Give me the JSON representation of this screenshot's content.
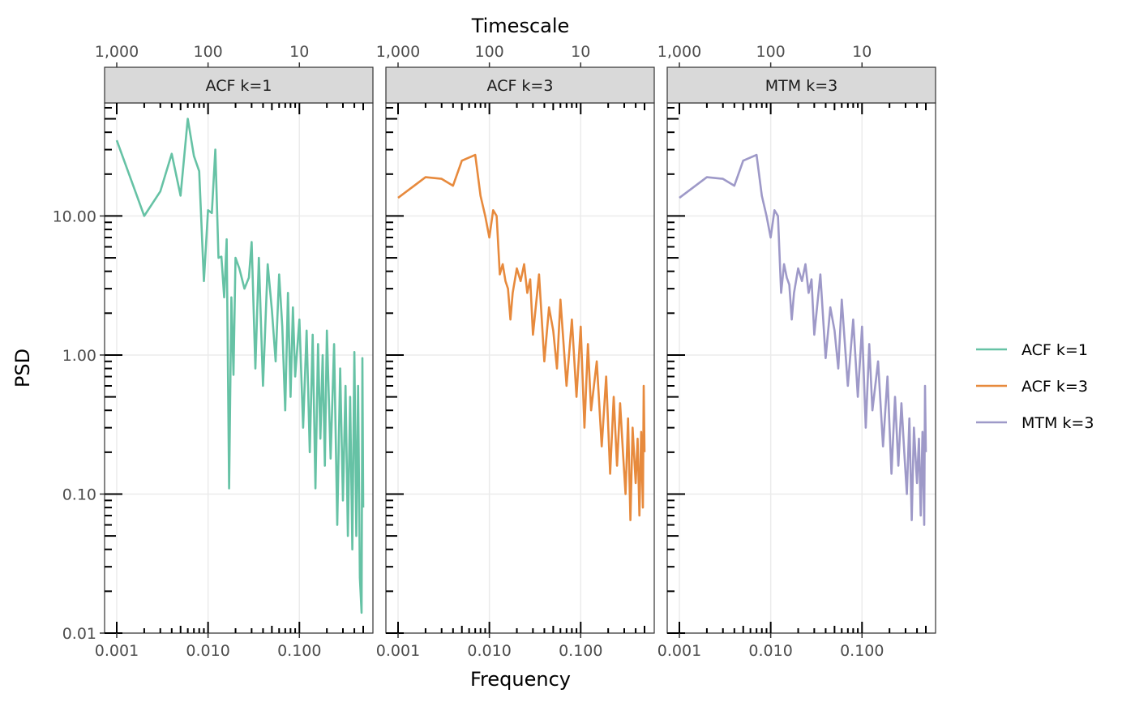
{
  "chart_data": {
    "type": "line",
    "xlabel": "Frequency",
    "ylabel": "PSD",
    "top_axis_label": "Timescale",
    "x_scale": "log10",
    "y_scale": "log10",
    "xlim": [
      0.001,
      0.5
    ],
    "ylim": [
      0.01,
      65
    ],
    "x_ticks": [
      0.001,
      0.01,
      0.1
    ],
    "x_tick_labels": [
      "0.001",
      "0.010",
      "0.100"
    ],
    "y_ticks": [
      0.01,
      0.1,
      1,
      10
    ],
    "y_tick_labels": [
      "0.01",
      "0.10",
      "1.00",
      "10.00"
    ],
    "top_ticks": [
      1000,
      100,
      10
    ],
    "top_tick_labels": [
      "1,000",
      "100",
      "10"
    ],
    "grid": true,
    "legend_position": "right",
    "facets": [
      "ACF k=1",
      "ACF k=3",
      "MTM k=3"
    ],
    "series": [
      {
        "name": "ACF k=1",
        "facet": "ACF k=1",
        "color": "#66C2A5",
        "points": [
          [
            0.001,
            35.0
          ],
          [
            0.002,
            10.0
          ],
          [
            0.003,
            15.0
          ],
          [
            0.004,
            28.0
          ],
          [
            0.005,
            14.0
          ],
          [
            0.006,
            50.0
          ],
          [
            0.007,
            27.0
          ],
          [
            0.008,
            21.0
          ],
          [
            0.009,
            3.4
          ],
          [
            0.01,
            11.0
          ],
          [
            0.011,
            10.5
          ],
          [
            0.012,
            30.0
          ],
          [
            0.013,
            5.0
          ],
          [
            0.014,
            5.1
          ],
          [
            0.015,
            2.6
          ],
          [
            0.016,
            6.8
          ],
          [
            0.017,
            0.11
          ],
          [
            0.018,
            2.6
          ],
          [
            0.019,
            0.72
          ],
          [
            0.02,
            5.0
          ],
          [
            0.022,
            4.2
          ],
          [
            0.025,
            3.0
          ],
          [
            0.028,
            3.6
          ],
          [
            0.03,
            6.5
          ],
          [
            0.033,
            0.8
          ],
          [
            0.036,
            5.0
          ],
          [
            0.04,
            0.6
          ],
          [
            0.045,
            4.5
          ],
          [
            0.05,
            2.1
          ],
          [
            0.055,
            0.9
          ],
          [
            0.06,
            3.8
          ],
          [
            0.065,
            1.6
          ],
          [
            0.07,
            0.4
          ],
          [
            0.075,
            2.8
          ],
          [
            0.08,
            0.5
          ],
          [
            0.085,
            2.2
          ],
          [
            0.09,
            0.7
          ],
          [
            0.1,
            1.8
          ],
          [
            0.11,
            0.3
          ],
          [
            0.12,
            1.5
          ],
          [
            0.13,
            0.2
          ],
          [
            0.14,
            1.4
          ],
          [
            0.15,
            0.11
          ],
          [
            0.16,
            1.2
          ],
          [
            0.17,
            0.25
          ],
          [
            0.18,
            1.0
          ],
          [
            0.19,
            0.16
          ],
          [
            0.2,
            1.5
          ],
          [
            0.22,
            0.18
          ],
          [
            0.24,
            1.2
          ],
          [
            0.26,
            0.06
          ],
          [
            0.28,
            0.8
          ],
          [
            0.3,
            0.09
          ],
          [
            0.32,
            0.6
          ],
          [
            0.34,
            0.05
          ],
          [
            0.36,
            0.5
          ],
          [
            0.38,
            0.04
          ],
          [
            0.4,
            1.05
          ],
          [
            0.42,
            0.05
          ],
          [
            0.44,
            0.6
          ],
          [
            0.46,
            0.025
          ],
          [
            0.48,
            0.014
          ],
          [
            0.49,
            0.95
          ],
          [
            0.5,
            0.08
          ]
        ]
      },
      {
        "name": "ACF k=3",
        "facet": "ACF k=3",
        "color": "#E78A3D",
        "points": [
          [
            0.001,
            13.5
          ],
          [
            0.002,
            19.0
          ],
          [
            0.003,
            18.5
          ],
          [
            0.004,
            16.5
          ],
          [
            0.005,
            25.0
          ],
          [
            0.007,
            27.5
          ],
          [
            0.008,
            14.0
          ],
          [
            0.009,
            10.0
          ],
          [
            0.01,
            7.0
          ],
          [
            0.011,
            11.0
          ],
          [
            0.012,
            10.0
          ],
          [
            0.013,
            3.8
          ],
          [
            0.014,
            4.5
          ],
          [
            0.015,
            3.4
          ],
          [
            0.016,
            3.0
          ],
          [
            0.017,
            1.8
          ],
          [
            0.018,
            2.8
          ],
          [
            0.02,
            4.2
          ],
          [
            0.022,
            3.4
          ],
          [
            0.024,
            4.5
          ],
          [
            0.026,
            2.8
          ],
          [
            0.028,
            3.5
          ],
          [
            0.03,
            1.4
          ],
          [
            0.035,
            3.8
          ],
          [
            0.04,
            0.9
          ],
          [
            0.045,
            2.2
          ],
          [
            0.05,
            1.5
          ],
          [
            0.055,
            0.8
          ],
          [
            0.06,
            2.5
          ],
          [
            0.07,
            0.6
          ],
          [
            0.08,
            1.8
          ],
          [
            0.09,
            0.5
          ],
          [
            0.1,
            1.6
          ],
          [
            0.11,
            0.3
          ],
          [
            0.12,
            1.2
          ],
          [
            0.13,
            0.4
          ],
          [
            0.15,
            0.9
          ],
          [
            0.17,
            0.22
          ],
          [
            0.19,
            0.7
          ],
          [
            0.21,
            0.14
          ],
          [
            0.23,
            0.5
          ],
          [
            0.25,
            0.16
          ],
          [
            0.27,
            0.45
          ],
          [
            0.29,
            0.2
          ],
          [
            0.31,
            0.1
          ],
          [
            0.33,
            0.35
          ],
          [
            0.35,
            0.065
          ],
          [
            0.37,
            0.3
          ],
          [
            0.4,
            0.12
          ],
          [
            0.42,
            0.25
          ],
          [
            0.44,
            0.07
          ],
          [
            0.46,
            0.28
          ],
          [
            0.48,
            0.08
          ],
          [
            0.49,
            0.6
          ],
          [
            0.5,
            0.2
          ]
        ]
      },
      {
        "name": "MTM k=3",
        "facet": "MTM k=3",
        "color": "#9E99C8",
        "points": [
          [
            0.001,
            13.5
          ],
          [
            0.002,
            19.0
          ],
          [
            0.003,
            18.5
          ],
          [
            0.004,
            16.5
          ],
          [
            0.005,
            25.0
          ],
          [
            0.007,
            27.5
          ],
          [
            0.008,
            14.0
          ],
          [
            0.009,
            10.0
          ],
          [
            0.01,
            7.0
          ],
          [
            0.011,
            11.0
          ],
          [
            0.012,
            10.0
          ],
          [
            0.013,
            2.8
          ],
          [
            0.014,
            4.5
          ],
          [
            0.015,
            3.6
          ],
          [
            0.016,
            3.2
          ],
          [
            0.017,
            1.8
          ],
          [
            0.018,
            2.8
          ],
          [
            0.02,
            4.2
          ],
          [
            0.022,
            3.4
          ],
          [
            0.024,
            4.5
          ],
          [
            0.026,
            2.8
          ],
          [
            0.028,
            3.5
          ],
          [
            0.03,
            1.4
          ],
          [
            0.035,
            3.8
          ],
          [
            0.04,
            0.95
          ],
          [
            0.045,
            2.2
          ],
          [
            0.05,
            1.5
          ],
          [
            0.055,
            0.8
          ],
          [
            0.06,
            2.5
          ],
          [
            0.07,
            0.6
          ],
          [
            0.08,
            1.8
          ],
          [
            0.09,
            0.5
          ],
          [
            0.1,
            1.6
          ],
          [
            0.11,
            0.3
          ],
          [
            0.12,
            1.2
          ],
          [
            0.13,
            0.4
          ],
          [
            0.15,
            0.9
          ],
          [
            0.17,
            0.22
          ],
          [
            0.19,
            0.7
          ],
          [
            0.21,
            0.14
          ],
          [
            0.23,
            0.5
          ],
          [
            0.25,
            0.16
          ],
          [
            0.27,
            0.45
          ],
          [
            0.29,
            0.2
          ],
          [
            0.31,
            0.1
          ],
          [
            0.33,
            0.35
          ],
          [
            0.35,
            0.065
          ],
          [
            0.37,
            0.3
          ],
          [
            0.4,
            0.12
          ],
          [
            0.42,
            0.25
          ],
          [
            0.44,
            0.07
          ],
          [
            0.46,
            0.28
          ],
          [
            0.48,
            0.06
          ],
          [
            0.49,
            0.6
          ],
          [
            0.5,
            0.2
          ]
        ]
      }
    ],
    "legend": [
      {
        "label": "ACF k=1",
        "color": "#66C2A5"
      },
      {
        "label": "ACF k=3",
        "color": "#E78A3D"
      },
      {
        "label": "MTM k=3",
        "color": "#9E99C8"
      }
    ]
  }
}
